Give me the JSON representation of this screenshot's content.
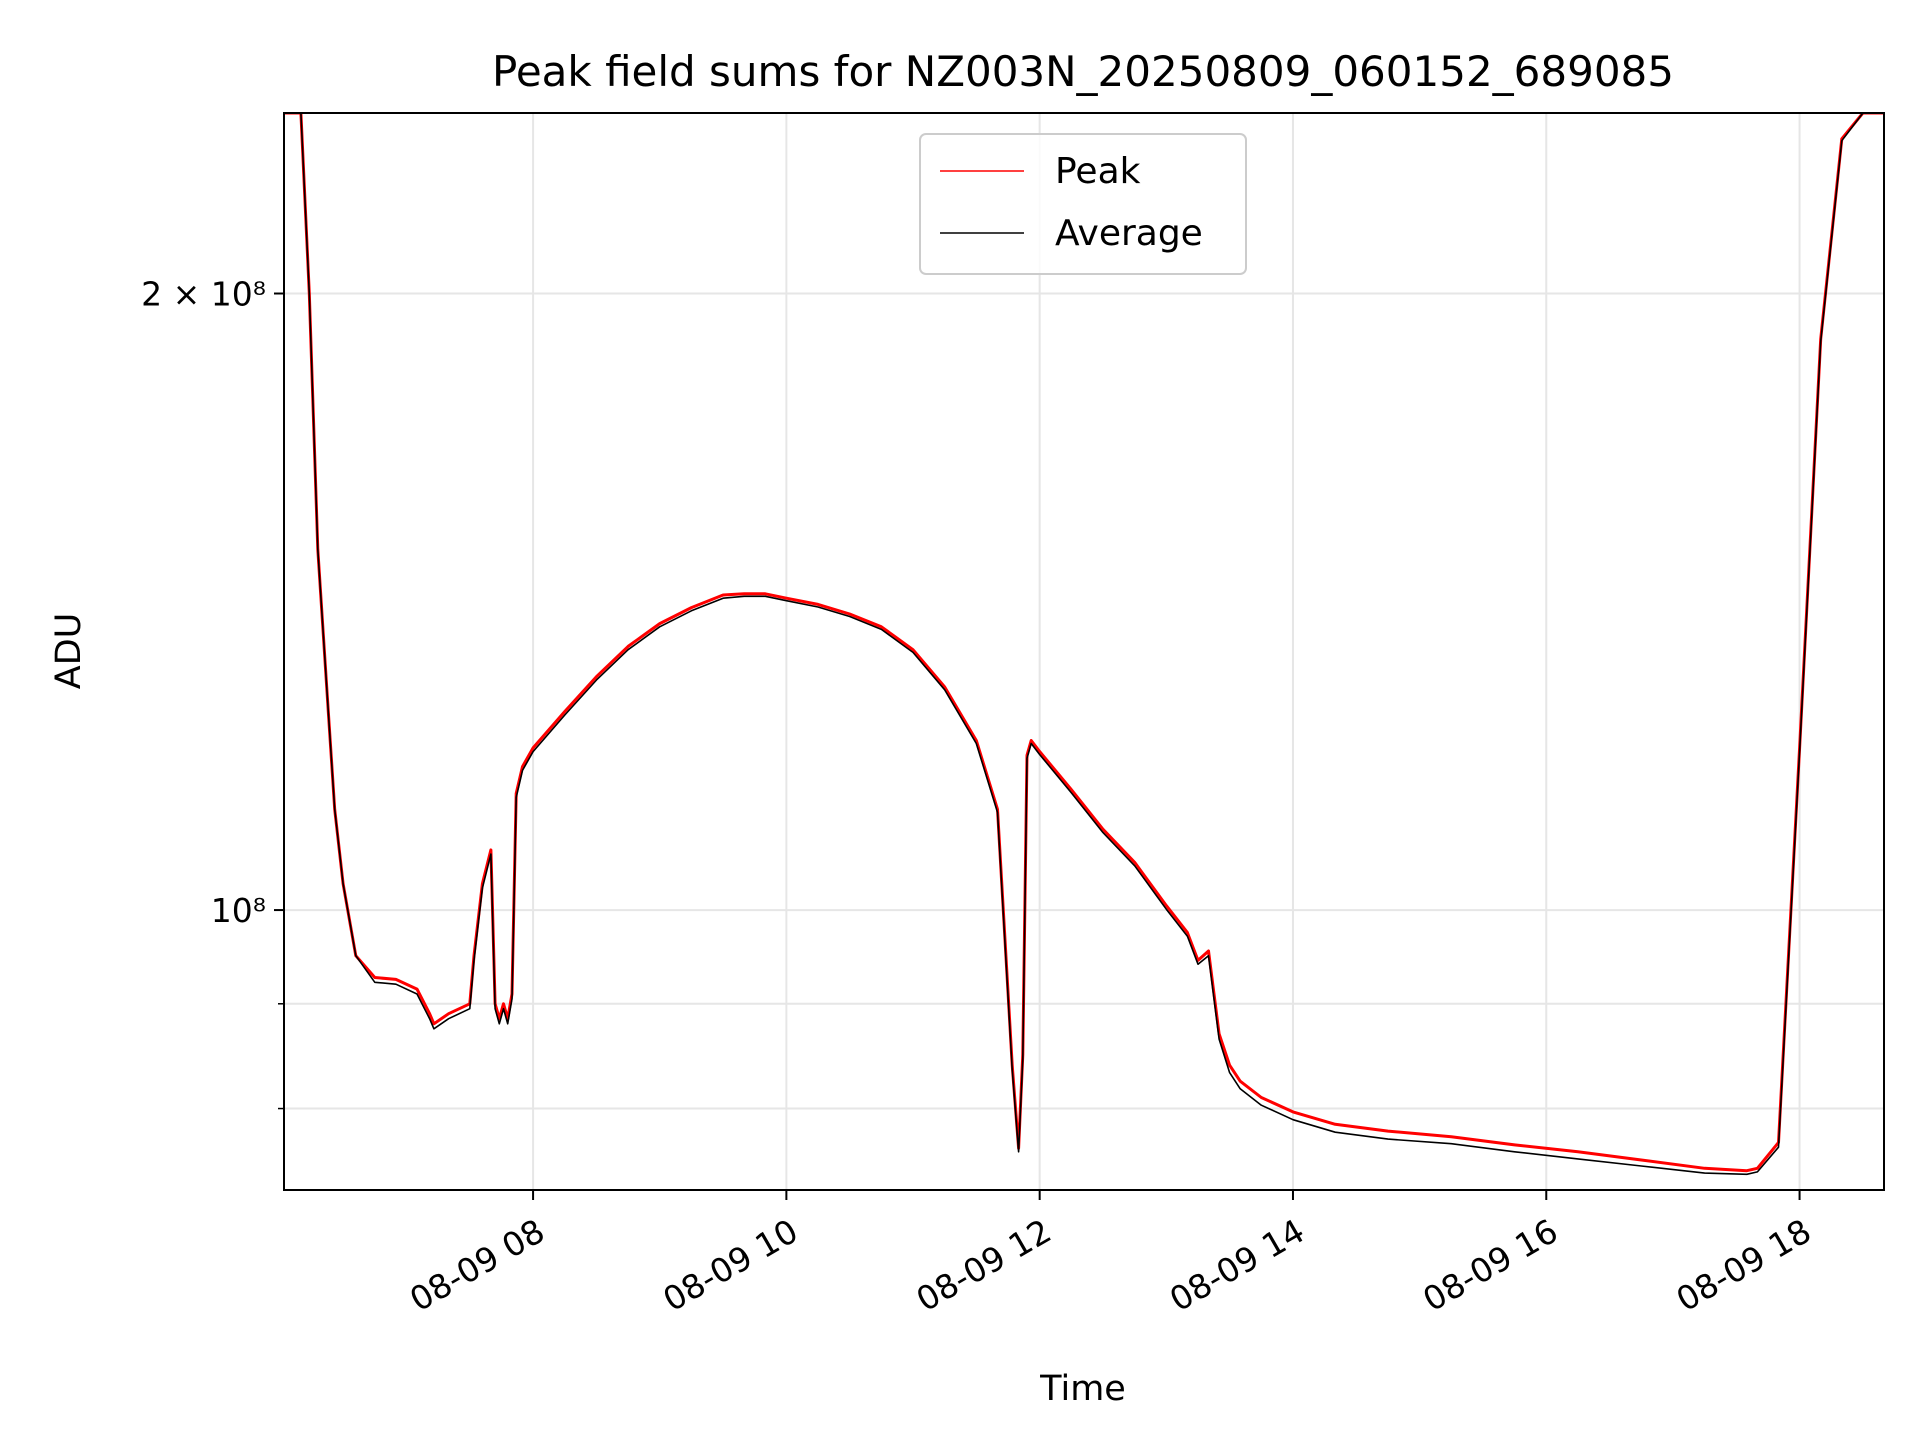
{
  "chart_data": {
    "type": "line",
    "title": "Peak field sums for NZ003N_20250809_060152_689085",
    "xlabel": "Time",
    "ylabel": "ADU",
    "xlim": [
      "08-09 06:02",
      "08-09 18:40"
    ],
    "x_tick_labels": [
      "08-09 08",
      "08-09 10",
      "08-09 12",
      "08-09 14",
      "08-09 16",
      "08-09 18"
    ],
    "y_scale": "log",
    "ylim": [
      73000000,
      245000000
    ],
    "y_tick_labels": {
      "major": [
        "2 × 10⁸",
        "10⁸"
      ],
      "major_values": [
        200000000,
        100000000
      ],
      "minor_values": [
        90000000,
        80000000
      ]
    },
    "grid": true,
    "legend": {
      "position": "top-center",
      "entries": [
        "Peak",
        "Average"
      ]
    },
    "series": [
      {
        "name": "Peak",
        "color": "#ff0000",
        "x": [
          "08-09 06:02",
          "08-09 06:10",
          "08-09 06:14",
          "08-09 06:18",
          "08-09 06:23",
          "08-09 06:26",
          "08-09 06:30",
          "08-09 06:36",
          "08-09 06:45",
          "08-09 06:55",
          "08-09 07:05",
          "08-09 07:11",
          "08-09 07:13",
          "08-09 07:20",
          "08-09 07:30",
          "08-09 07:32",
          "08-09 07:36",
          "08-09 07:40",
          "08-09 07:42",
          "08-09 07:44",
          "08-09 07:46",
          "08-09 07:48",
          "08-09 07:50",
          "08-09 07:52",
          "08-09 07:55",
          "08-09 08:00",
          "08-09 08:15",
          "08-09 08:30",
          "08-09 08:45",
          "08-09 09:00",
          "08-09 09:15",
          "08-09 09:30",
          "08-09 09:40",
          "08-09 09:50",
          "08-09 10:00",
          "08-09 10:15",
          "08-09 10:30",
          "08-09 10:45",
          "08-09 11:00",
          "08-09 11:15",
          "08-09 11:30",
          "08-09 11:40",
          "08-09 11:47",
          "08-09 11:50",
          "08-09 11:52",
          "08-09 11:54",
          "08-09 11:56",
          "08-09 12:00",
          "08-09 12:15",
          "08-09 12:30",
          "08-09 12:45",
          "08-09 13:00",
          "08-09 13:10",
          "08-09 13:15",
          "08-09 13:20",
          "08-09 13:25",
          "08-09 13:30",
          "08-09 13:35",
          "08-09 13:45",
          "08-09 14:00",
          "08-09 14:20",
          "08-09 14:45",
          "08-09 15:15",
          "08-09 15:45",
          "08-09 16:15",
          "08-09 16:45",
          "08-09 17:15",
          "08-09 17:35",
          "08-09 17:40",
          "08-09 17:50",
          "08-09 18:00",
          "08-09 18:10",
          "08-09 18:20",
          "08-09 18:30",
          "08-09 18:40"
        ],
        "y": [
          245000000,
          245000000,
          200000000,
          150000000,
          125000000,
          112000000,
          103000000,
          95000000,
          92700000,
          92500000,
          91500000,
          89000000,
          88000000,
          89000000,
          90000000,
          95000000,
          103000000,
          107000000,
          90000000,
          88500000,
          90000000,
          88500000,
          91000000,
          114000000,
          117500000,
          120000000,
          125000000,
          130000000,
          134500000,
          138000000,
          140500000,
          142500000,
          142700000,
          142700000,
          142000000,
          141000000,
          139500000,
          137500000,
          134000000,
          128500000,
          121000000,
          112000000,
          84000000,
          76500000,
          85000000,
          119000000,
          121000000,
          119500000,
          114500000,
          109500000,
          105500000,
          100500000,
          97500000,
          94500000,
          95500000,
          87000000,
          84000000,
          82500000,
          81000000,
          79700000,
          78600000,
          78000000,
          77500000,
          76800000,
          76200000,
          75500000,
          74800000,
          74600000,
          74800000,
          77000000,
          120000000,
          190000000,
          238000000,
          245000000,
          245000000
        ]
      },
      {
        "name": "Average",
        "color": "#000000",
        "x": [
          "08-09 06:02",
          "08-09 06:10",
          "08-09 06:14",
          "08-09 06:18",
          "08-09 06:23",
          "08-09 06:26",
          "08-09 06:30",
          "08-09 06:36",
          "08-09 06:45",
          "08-09 06:55",
          "08-09 07:05",
          "08-09 07:11",
          "08-09 07:13",
          "08-09 07:20",
          "08-09 07:30",
          "08-09 07:32",
          "08-09 07:36",
          "08-09 07:40",
          "08-09 07:42",
          "08-09 07:44",
          "08-09 07:46",
          "08-09 07:48",
          "08-09 07:50",
          "08-09 07:52",
          "08-09 07:55",
          "08-09 08:00",
          "08-09 08:15",
          "08-09 08:30",
          "08-09 08:45",
          "08-09 09:00",
          "08-09 09:15",
          "08-09 09:30",
          "08-09 09:40",
          "08-09 09:50",
          "08-09 10:00",
          "08-09 10:15",
          "08-09 10:30",
          "08-09 10:45",
          "08-09 11:00",
          "08-09 11:15",
          "08-09 11:30",
          "08-09 11:40",
          "08-09 11:47",
          "08-09 11:50",
          "08-09 11:52",
          "08-09 11:54",
          "08-09 11:56",
          "08-09 12:00",
          "08-09 12:15",
          "08-09 12:30",
          "08-09 12:45",
          "08-09 13:00",
          "08-09 13:10",
          "08-09 13:15",
          "08-09 13:20",
          "08-09 13:25",
          "08-09 13:30",
          "08-09 13:35",
          "08-09 13:45",
          "08-09 14:00",
          "08-09 14:20",
          "08-09 14:45",
          "08-09 15:15",
          "08-09 15:45",
          "08-09 16:15",
          "08-09 16:45",
          "08-09 17:15",
          "08-09 17:35",
          "08-09 17:40",
          "08-09 17:50",
          "08-09 18:00",
          "08-09 18:10",
          "08-09 18:20",
          "08-09 18:30",
          "08-09 18:40"
        ],
        "y": [
          245000000,
          245000000,
          200000000,
          150000000,
          125000000,
          112000000,
          103000000,
          95000000,
          92200000,
          92000000,
          91000000,
          88500000,
          87500000,
          88500000,
          89500000,
          94500000,
          102500000,
          106500000,
          89500000,
          88000000,
          89500000,
          88000000,
          90500000,
          113500000,
          117000000,
          119500000,
          124500000,
          129500000,
          134000000,
          137500000,
          140000000,
          142000000,
          142300000,
          142300000,
          141600000,
          140600000,
          139100000,
          137100000,
          133600000,
          128100000,
          120600000,
          111600000,
          83600000,
          76200000,
          84600000,
          118600000,
          120600000,
          119100000,
          114100000,
          109100000,
          105100000,
          100100000,
          97100000,
          94100000,
          95000000,
          86500000,
          83300000,
          81800000,
          80300000,
          79000000,
          77900000,
          77300000,
          76900000,
          76200000,
          75600000,
          75000000,
          74400000,
          74300000,
          74500000,
          76600000,
          119500000,
          189500000,
          237500000,
          245000000,
          245000000
        ]
      }
    ]
  }
}
